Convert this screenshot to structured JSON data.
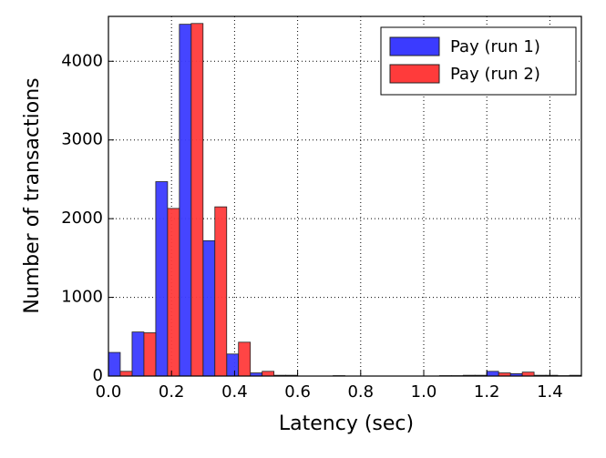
{
  "chart_data": {
    "type": "histogram",
    "x_label": "Latency (sec)",
    "y_label": "Number of transactions",
    "bins": [
      0,
      0.075,
      0.15,
      0.225,
      0.3,
      0.375,
      0.45,
      0.525,
      0.6,
      0.675,
      0.75,
      0.825,
      0.9,
      0.975,
      1.05,
      1.125,
      1.2,
      1.275,
      1.35,
      1.425,
      1.5
    ],
    "series": [
      {
        "name": "Pay (run 1)",
        "color": "#3b3bff",
        "values": [
          300,
          560,
          2470,
          4470,
          1720,
          280,
          40,
          10,
          0,
          0,
          0,
          0,
          0,
          0,
          5,
          10,
          60,
          30,
          10,
          5
        ]
      },
      {
        "name": "Pay (run 2)",
        "color": "#ff3b3b",
        "values": [
          60,
          550,
          2130,
          4480,
          2150,
          430,
          60,
          10,
          0,
          5,
          0,
          0,
          0,
          0,
          5,
          10,
          40,
          50,
          10,
          10
        ]
      }
    ],
    "xlim": [
      0,
      1.5
    ],
    "ylim": [
      0,
      4570
    ],
    "xticks": [
      {
        "value": 0,
        "label": "0.0"
      },
      0.2,
      0.4,
      0.6,
      0.8,
      {
        "value": 1,
        "label": "1.0"
      },
      1.2,
      1.4
    ],
    "yticks": [
      0,
      1000,
      2000,
      3000,
      4000
    ],
    "grid": true,
    "legend": "upper right"
  }
}
